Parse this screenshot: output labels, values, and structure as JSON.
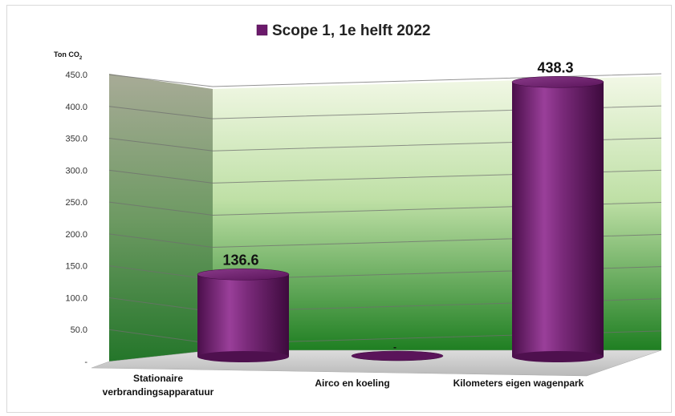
{
  "chart_data": {
    "type": "bar",
    "title": "",
    "ylabel": "Ton CO",
    "ylabel_sub": "2",
    "ylim": [
      0,
      450
    ],
    "yticks": [
      "450.0",
      "400.0",
      "350.0",
      "300.0",
      "250.0",
      "200.0",
      "150.0",
      "100.0",
      "50.0",
      "-"
    ],
    "categories": [
      "Stationaire verbrandingsapparatuur",
      "Airco en koeling",
      "Kilometers eigen wagenpark"
    ],
    "category_lines": [
      [
        "Stationaire",
        "verbrandingsapparatuur"
      ],
      [
        "Airco en koeling"
      ],
      [
        "Kilometers eigen wagenpark"
      ]
    ],
    "series": [
      {
        "name": "Scope 1, 1e helft 2022",
        "values": [
          136.6,
          0,
          438.3
        ],
        "color": "#6b1a6b"
      }
    ],
    "data_labels": [
      "136.6",
      "-",
      "438.3"
    ],
    "legend_position": "top",
    "grid": true,
    "colors": {
      "bar": "#6b1a6b",
      "bar_light": "#a44aa4",
      "wall_back_top": "#eef6df",
      "wall_back_bottom": "#1f7d1f",
      "wall_side_top": "#a9ad98",
      "wall_side_bottom": "#2a7a2a",
      "floor": "#c9c9c9"
    }
  }
}
